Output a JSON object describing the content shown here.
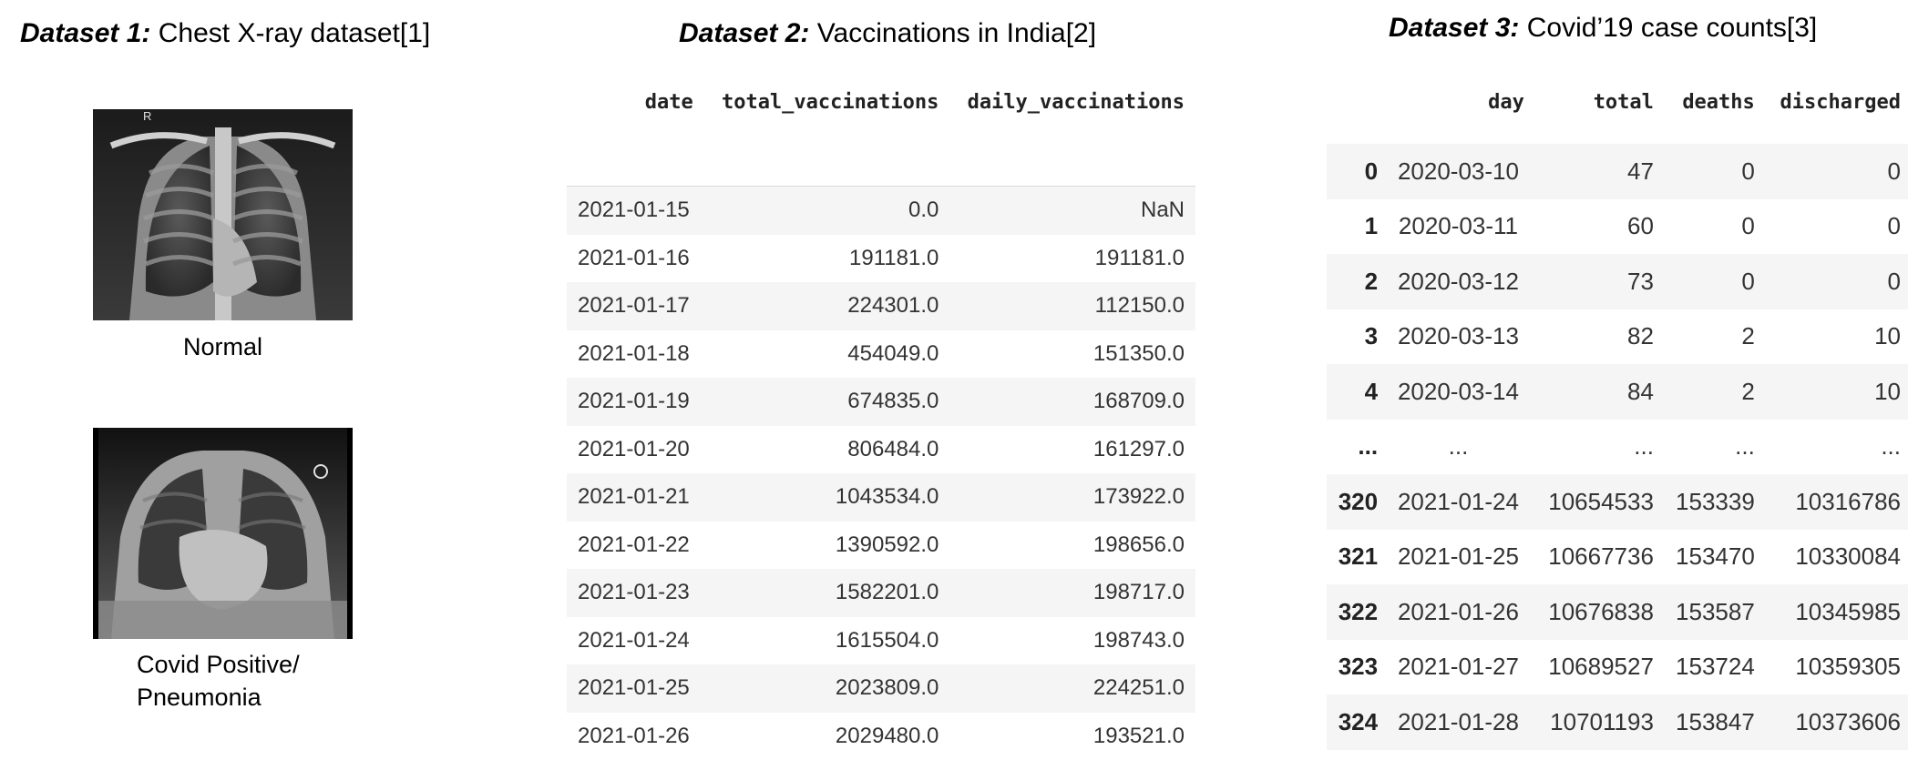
{
  "dataset1": {
    "label": "Dataset 1:",
    "title": "Chest X-ray dataset[1]",
    "normal_caption": "Normal",
    "covid_caption_line1": "Covid Positive/",
    "covid_caption_line2": "Pneumonia",
    "xray_marker": "R"
  },
  "dataset2": {
    "label": "Dataset 2:",
    "title": "Vaccinations in India[2]",
    "columns": [
      "date",
      "total_vaccinations",
      "daily_vaccinations"
    ],
    "rows": [
      [
        "2021-01-15",
        "0.0",
        "NaN"
      ],
      [
        "2021-01-16",
        "191181.0",
        "191181.0"
      ],
      [
        "2021-01-17",
        "224301.0",
        "112150.0"
      ],
      [
        "2021-01-18",
        "454049.0",
        "151350.0"
      ],
      [
        "2021-01-19",
        "674835.0",
        "168709.0"
      ],
      [
        "2021-01-20",
        "806484.0",
        "161297.0"
      ],
      [
        "2021-01-21",
        "1043534.0",
        "173922.0"
      ],
      [
        "2021-01-22",
        "1390592.0",
        "198656.0"
      ],
      [
        "2021-01-23",
        "1582201.0",
        "198717.0"
      ],
      [
        "2021-01-24",
        "1615504.0",
        "198743.0"
      ],
      [
        "2021-01-25",
        "2023809.0",
        "224251.0"
      ],
      [
        "2021-01-26",
        "2029480.0",
        "193521.0"
      ]
    ]
  },
  "dataset3": {
    "label": "Dataset 3:",
    "title": "Covid’19 case counts[3]",
    "columns": [
      "",
      "day",
      "total",
      "deaths",
      "discharged"
    ],
    "rows": [
      [
        "0",
        "2020-03-10",
        "47",
        "0",
        "0"
      ],
      [
        "1",
        "2020-03-11",
        "60",
        "0",
        "0"
      ],
      [
        "2",
        "2020-03-12",
        "73",
        "0",
        "0"
      ],
      [
        "3",
        "2020-03-13",
        "82",
        "2",
        "10"
      ],
      [
        "4",
        "2020-03-14",
        "84",
        "2",
        "10"
      ],
      [
        "...",
        "...",
        "...",
        "...",
        "..."
      ],
      [
        "320",
        "2021-01-24",
        "10654533",
        "153339",
        "10316786"
      ],
      [
        "321",
        "2021-01-25",
        "10667736",
        "153470",
        "10330084"
      ],
      [
        "322",
        "2021-01-26",
        "10676838",
        "153587",
        "10345985"
      ],
      [
        "323",
        "2021-01-27",
        "10689527",
        "153724",
        "10359305"
      ],
      [
        "324",
        "2021-01-28",
        "10701193",
        "153847",
        "10373606"
      ]
    ]
  }
}
